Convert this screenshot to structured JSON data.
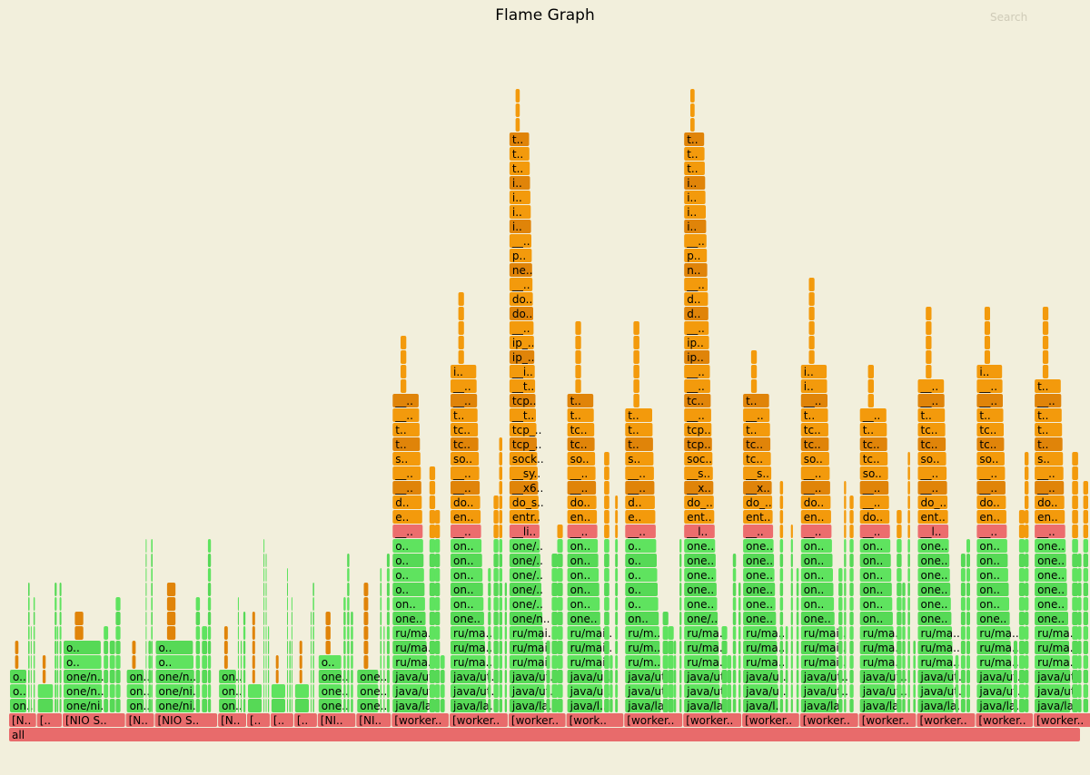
{
  "title": "Flame Graph",
  "search_label": "Search",
  "colors": {
    "background": "#f2efdc",
    "root": "#e86b6b",
    "thread": "#e86b6b",
    "java": "#5fe35f",
    "java_alt": "#56d956",
    "kernel": "#f39a0c",
    "kernel_alt": "#e08409",
    "native": "#ec6d6d"
  },
  "chart_data": {
    "type": "flame",
    "root": {
      "label": "all",
      "samples": 1000
    },
    "nio_threads": [
      {
        "label": "[N..",
        "samples": 26,
        "stack": [
          "on..",
          "o..",
          "o.."
        ]
      },
      {
        "label": "[..",
        "samples": 24,
        "stack": [
          "o..",
          "o.."
        ]
      },
      {
        "label": "[NIO S..",
        "samples": 59,
        "stack": [
          "one/ni..",
          "one/n..",
          "one/n..",
          "o..",
          "o.."
        ]
      },
      {
        "label": "[N..",
        "samples": 27,
        "stack": [
          "on..",
          "on..",
          "on.."
        ]
      },
      {
        "label": "[NIO S..",
        "samples": 59,
        "stack": [
          "one/ni..",
          "one/ni..",
          "one/n..",
          "o..",
          "o.."
        ]
      },
      {
        "label": "[N..",
        "samples": 27,
        "stack": [
          "on..",
          "on..",
          "on.."
        ]
      },
      {
        "label": "[..",
        "samples": 22,
        "stack": [
          "o..",
          "o.."
        ]
      },
      {
        "label": "[..",
        "samples": 22,
        "stack": [
          "o..",
          "o.."
        ]
      },
      {
        "label": "[..",
        "samples": 22,
        "stack": [
          "o..",
          "o.."
        ]
      },
      {
        "label": "[NI..",
        "samples": 36,
        "stack": [
          "one..",
          "one..",
          "one..",
          "o.."
        ]
      },
      {
        "label": "[NI..",
        "samples": 33,
        "stack": [
          "one..",
          "one..",
          "one.."
        ]
      }
    ],
    "worker_threads": [
      {
        "label": "[worker..",
        "samples": 54,
        "stack": [
          "java/la..",
          "java/ut..",
          "java/ut..",
          "ru/ma..",
          "ru/ma..",
          "ru/ma..",
          "one..",
          "on..",
          "o..",
          "o..",
          "o..",
          "o..",
          "__..",
          "e..",
          "d..",
          "__..",
          "__..",
          "s..",
          "t..",
          "t..",
          "__..",
          "__.."
        ]
      },
      {
        "label": "[worker..",
        "samples": 55,
        "stack": [
          "java/la..",
          "java/ut..",
          "java/ut..",
          "ru/ma..",
          "ru/ma..",
          "ru/ma..",
          "one..",
          "on..",
          "on..",
          "on..",
          "on..",
          "on..",
          "__..",
          "en..",
          "do..",
          "__..",
          "__..",
          "so..",
          "tc..",
          "tc..",
          "t..",
          "__..",
          "__..",
          "i.."
        ]
      },
      {
        "label": "[worker..",
        "samples": 54,
        "stack": [
          "java/la..",
          "java/ut..",
          "java/ut..",
          "ru/mai..",
          "ru/mai..",
          "ru/mai..",
          "one/n..",
          "one/..",
          "one/..",
          "one/..",
          "one/..",
          "one/..",
          "__li..",
          "entr..",
          "do_s..",
          "__x6..",
          "__sy..",
          "sock..",
          "tcp_..",
          "tcp_..",
          "__t..",
          "tcp..",
          "__t..",
          "__i..",
          "ip_..",
          "ip_..",
          "__..",
          "do..",
          "do..",
          "__..",
          "ne..",
          "p..",
          "__..",
          "i..",
          "i..",
          "i..",
          "i..",
          "t..",
          "t..",
          "t.."
        ]
      },
      {
        "label": "[work..",
        "samples": 54,
        "stack": [
          "java/l..",
          "java/u..",
          "java/u..",
          "ru/mai..",
          "ru/mai..",
          "ru/mai..",
          "one..",
          "on..",
          "on..",
          "on..",
          "on..",
          "on..",
          "__..",
          "en..",
          "do..",
          "__..",
          "__..",
          "so..",
          "tc..",
          "tc..",
          "t..",
          "t.."
        ]
      },
      {
        "label": "[worker..",
        "samples": 55,
        "stack": [
          "java/la..",
          "java/ut..",
          "java/ut..",
          "ru/m..",
          "ru/m..",
          "ru/m..",
          "on..",
          "o..",
          "o..",
          "o..",
          "o..",
          "o..",
          "__..",
          "e..",
          "d..",
          "__..",
          "__..",
          "s..",
          "t..",
          "t..",
          "t.."
        ]
      },
      {
        "label": "[worker..",
        "samples": 55,
        "stack": [
          "java/la..",
          "java/ut..",
          "java/ut..",
          "ru/ma..",
          "ru/ma..",
          "ru/ma..",
          "one/..",
          "one..",
          "one..",
          "one..",
          "one..",
          "one..",
          "__l..",
          "ent..",
          "do_..",
          "__x..",
          "__s..",
          "soc..",
          "tcp..",
          "tcp..",
          "__..",
          "tc..",
          "__..",
          "__..",
          "ip..",
          "ip..",
          "__..",
          "d..",
          "d..",
          "__..",
          "n..",
          "p..",
          "__..",
          "i..",
          "i..",
          "i..",
          "i..",
          "t..",
          "t..",
          "t.."
        ]
      },
      {
        "label": "[worker..",
        "samples": 54,
        "stack": [
          "java/l..",
          "java/u..",
          "java/u..",
          "ru/ma..",
          "ru/ma..",
          "ru/ma..",
          "one..",
          "one..",
          "one..",
          "one..",
          "one..",
          "one..",
          "__..",
          "ent..",
          "do_..",
          "__x..",
          "__s..",
          "tc..",
          "tc..",
          "t..",
          "__..",
          "t.."
        ]
      },
      {
        "label": "[worker..",
        "samples": 55,
        "stack": [
          "java/la..",
          "java/ut..",
          "java/ut..",
          "ru/mai..",
          "ru/mai..",
          "ru/mai..",
          "one..",
          "on..",
          "on..",
          "on..",
          "on..",
          "on..",
          "__..",
          "en..",
          "do..",
          "__..",
          "__..",
          "so..",
          "tc..",
          "tc..",
          "t..",
          "__..",
          "i..",
          "i.."
        ]
      },
      {
        "label": "[worker..",
        "samples": 54,
        "stack": [
          "java/la..",
          "java/ut..",
          "java/ut..",
          "ru/ma..",
          "ru/ma..",
          "ru/ma..",
          "on..",
          "on..",
          "on..",
          "on..",
          "on..",
          "on..",
          "__..",
          "do..",
          "__..",
          "__..",
          "so..",
          "tc..",
          "tc..",
          "t..",
          "__.."
        ]
      },
      {
        "label": "[worker..",
        "samples": 55,
        "stack": [
          "java/la..",
          "java/ut..",
          "java/ut..",
          "ru/ma..",
          "ru/ma..",
          "ru/ma..",
          "one..",
          "one..",
          "one..",
          "one..",
          "one..",
          "one..",
          "__l..",
          "ent..",
          "do_..",
          "__..",
          "__..",
          "so..",
          "tc..",
          "tc..",
          "t..",
          "__..",
          "__.."
        ]
      },
      {
        "label": "[worker..",
        "samples": 54,
        "stack": [
          "java/la..",
          "java/ut..",
          "java/ut..",
          "ru/ma..",
          "ru/ma..",
          "ru/ma..",
          "one..",
          "on..",
          "on..",
          "on..",
          "on..",
          "on..",
          "__..",
          "en..",
          "do..",
          "__..",
          "__..",
          "so..",
          "tc..",
          "tc..",
          "t..",
          "__..",
          "__..",
          "i.."
        ]
      },
      {
        "label": "[worker..",
        "samples": 55,
        "stack": [
          "java/la..",
          "java/ut..",
          "java/ut..",
          "ru/ma..",
          "ru/ma..",
          "ru/ma..",
          "one..",
          "one..",
          "one..",
          "one..",
          "one..",
          "one..",
          "__..",
          "en..",
          "do..",
          "__..",
          "__..",
          "s..",
          "t..",
          "t..",
          "t..",
          "__..",
          "t.."
        ]
      }
    ]
  }
}
